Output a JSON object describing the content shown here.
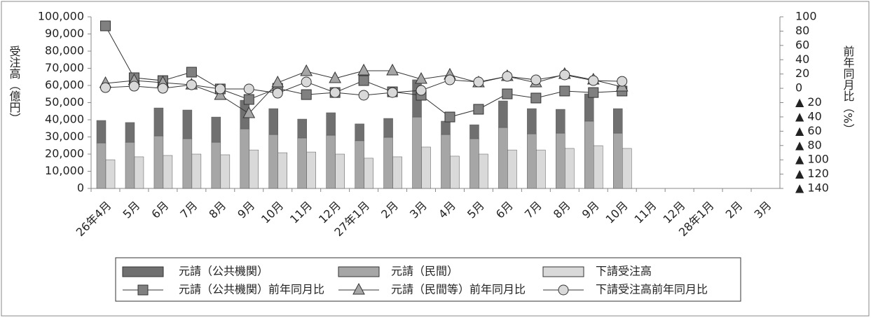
{
  "chart_data": {
    "type": "combo",
    "y_label": "受注高（億円）",
    "y2_label": "前年同月比（%）",
    "categories": [
      "26年4月",
      "5月",
      "6月",
      "7月",
      "8月",
      "9月",
      "10月",
      "11月",
      "12月",
      "27年1月",
      "2月",
      "3月",
      "4月",
      "5月",
      "6月",
      "7月",
      "8月",
      "9月",
      "10月",
      "11月",
      "12月",
      "28年1月",
      "2月",
      "3月"
    ],
    "ylim": [
      0,
      100000
    ],
    "yticks": [
      0,
      {
        "value": 10000,
        "label": "10,000"
      },
      {
        "value": 20000,
        "label": "20,000"
      },
      {
        "value": 30000,
        "label": "30,000"
      },
      {
        "value": 40000,
        "label": "40,000"
      },
      {
        "value": 50000,
        "label": "50,000"
      },
      {
        "value": 60000,
        "label": "60,000"
      },
      {
        "value": 70000,
        "label": "70,000"
      },
      {
        "value": 80000,
        "label": "80,000"
      },
      {
        "value": 90000,
        "label": "90,000"
      },
      {
        "value": 100000,
        "label": "100,000"
      }
    ],
    "y2lim": [
      -140,
      100
    ],
    "y2ticks": [
      100,
      80,
      60,
      40,
      20,
      0,
      {
        "value": -20,
        "label": "▲ 20"
      },
      {
        "value": -40,
        "label": "▲ 40"
      },
      {
        "value": -60,
        "label": "▲ 60"
      },
      {
        "value": -80,
        "label": "▲ 80"
      },
      {
        "value": -100,
        "label": "▲ 100"
      },
      {
        "value": -120,
        "label": "▲ 120"
      },
      {
        "value": -140,
        "label": "▲ 140"
      }
    ],
    "series": [
      {
        "name": "元請（公共機関）",
        "type": "bar",
        "stacked": true,
        "color": "#707070",
        "values": [
          13100,
          11500,
          16300,
          16700,
          14700,
          16700,
          15100,
          11000,
          13100,
          9800,
          11000,
          21700,
          7800,
          8100,
          15500,
          14700,
          13900,
          15900,
          14300,
          null,
          null,
          null,
          null,
          null
        ]
      },
      {
        "name": "元請（民間）",
        "type": "bar",
        "stacked": true,
        "color": "#a6a6a6",
        "values": [
          26500,
          26900,
          30600,
          29000,
          26900,
          34700,
          31400,
          29400,
          31000,
          27800,
          29800,
          41600,
          31400,
          29000,
          35500,
          31800,
          32200,
          39200,
          32200,
          null,
          null,
          null,
          null,
          null
        ]
      },
      {
        "name": "下請受注高",
        "type": "bar",
        "stacked": false,
        "color": "#d9d9d9",
        "values": [
          16700,
          18400,
          19200,
          20000,
          19600,
          22400,
          20800,
          21200,
          20000,
          17600,
          18400,
          24100,
          18800,
          20000,
          22400,
          22400,
          23300,
          24900,
          23300,
          null,
          null,
          null,
          null,
          null
        ]
      },
      {
        "name": "元請（公共機関）前年同月比",
        "type": "line",
        "axis": "y2",
        "marker": "square",
        "color": "#808080",
        "values": [
          87.3,
          14.8,
          10.8,
          22.6,
          -0.9,
          -15.6,
          0,
          -8.8,
          -5.9,
          10.8,
          -4.9,
          -9.7,
          -40.1,
          -29.3,
          -7.8,
          -13.6,
          -3.8,
          -5.9,
          -3.8,
          null,
          null,
          null,
          null,
          null
        ]
      },
      {
        "name": "元請（民間等）前年同月比",
        "type": "line",
        "axis": "y2",
        "marker": "triangle",
        "color": "#a6a6a6",
        "values": [
          6.9,
          10.8,
          7.9,
          4.9,
          -9.7,
          -35.2,
          7.9,
          23.6,
          13.8,
          24.6,
          24.6,
          12.8,
          18.7,
          7.9,
          16.7,
          7.9,
          19.7,
          11.8,
          2.0,
          null,
          null,
          null,
          null,
          null
        ]
      },
      {
        "name": "下請受注高前年同月比",
        "type": "line",
        "axis": "y2",
        "marker": "circle",
        "color": "#d9d9d9",
        "values": [
          1.0,
          3.0,
          0,
          4.9,
          -0.9,
          -0.9,
          -6.8,
          8.9,
          -5.9,
          -9.7,
          -5.9,
          -2.9,
          11.8,
          8.9,
          16.7,
          11.8,
          18.7,
          10.8,
          9.8,
          null,
          null,
          null,
          null,
          null
        ]
      }
    ]
  }
}
